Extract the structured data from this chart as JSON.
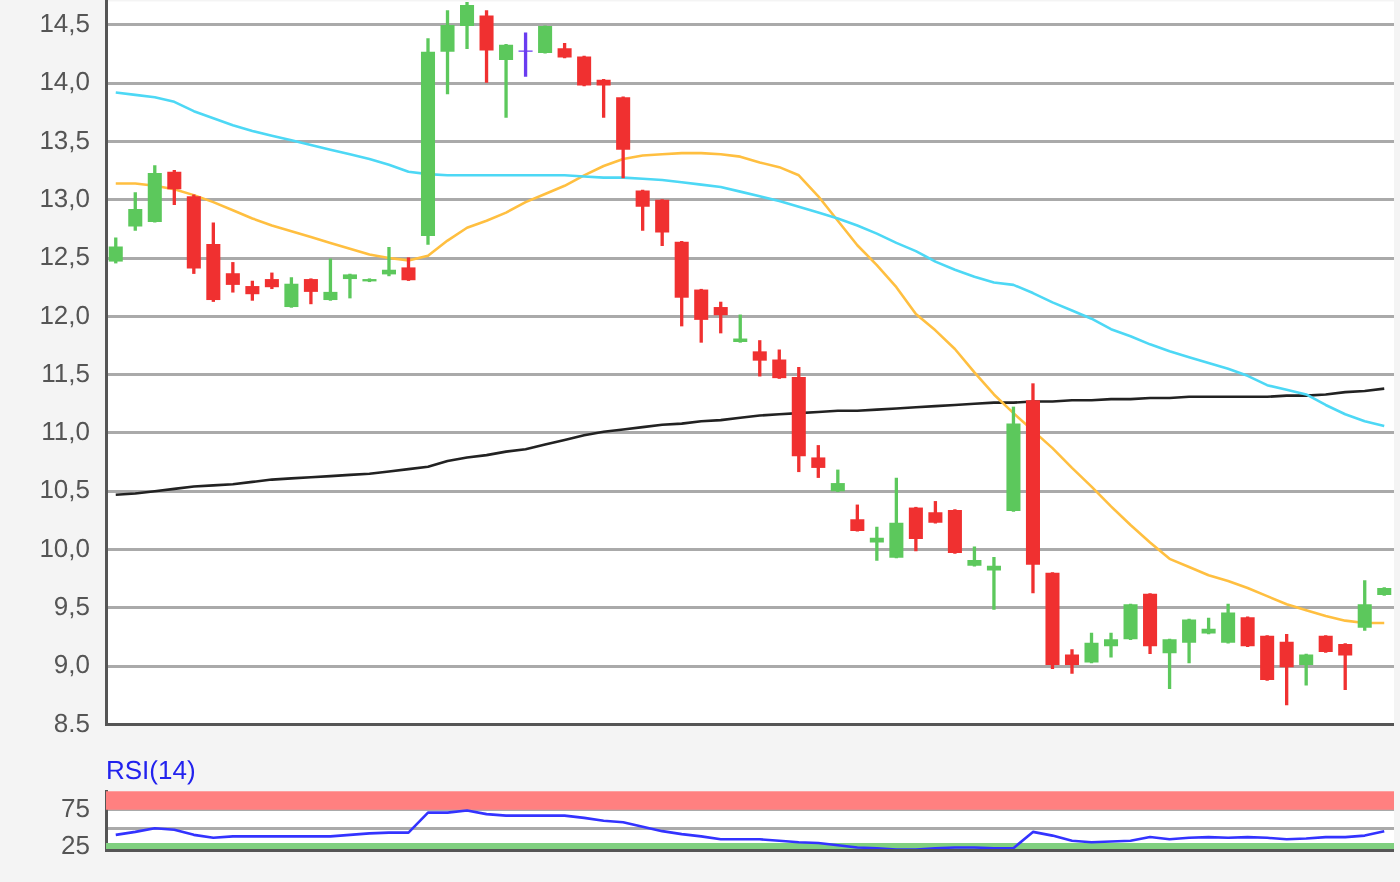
{
  "chart_data": [
    {
      "type": "candlestick",
      "categories": [
        null,
        null,
        null,
        null,
        null,
        null,
        null,
        null,
        null,
        null,
        null,
        null,
        null,
        null,
        null,
        null,
        null,
        null,
        null,
        null,
        null,
        null,
        null,
        null,
        null,
        null,
        null,
        null,
        null,
        null,
        null,
        null,
        null,
        null,
        null,
        null,
        null,
        null,
        null,
        null,
        null,
        null,
        null,
        null,
        null,
        null,
        null,
        null,
        null,
        null,
        null,
        null,
        null,
        null,
        null,
        null,
        null,
        null,
        null,
        null,
        null,
        null,
        null,
        null,
        null,
        null
      ],
      "ohlc": [
        [
          12.47,
          12.67,
          12.46,
          12.6
        ],
        [
          12.77,
          13.06,
          12.74,
          12.92
        ],
        [
          12.81,
          13.29,
          12.81,
          13.23
        ],
        [
          13.24,
          13.25,
          12.96,
          13.09
        ],
        [
          13.03,
          13.04,
          12.37,
          12.41
        ],
        [
          12.62,
          12.8,
          12.13,
          12.14
        ],
        [
          12.37,
          12.46,
          12.21,
          12.27
        ],
        [
          12.26,
          12.3,
          12.14,
          12.19
        ],
        [
          12.32,
          12.37,
          12.24,
          12.25
        ],
        [
          12.08,
          12.33,
          12.08,
          12.28
        ],
        [
          12.32,
          12.32,
          12.11,
          12.21
        ],
        [
          12.14,
          12.49,
          12.14,
          12.21
        ],
        [
          12.32,
          12.36,
          12.16,
          12.36
        ],
        [
          12.3,
          12.32,
          12.3,
          12.32
        ],
        [
          12.36,
          12.59,
          12.35,
          12.4
        ],
        [
          12.42,
          12.5,
          12.31,
          12.31
        ],
        [
          12.69,
          14.38,
          12.62,
          14.27
        ],
        [
          14.27,
          14.62,
          13.91,
          14.5
        ],
        [
          14.49,
          14.69,
          14.3,
          14.67
        ],
        [
          14.58,
          14.62,
          14.01,
          14.28
        ],
        [
          14.2,
          14.33,
          13.71,
          14.33
        ],
        [
          14.28,
          14.43,
          14.06,
          14.27
        ],
        [
          14.26,
          14.49,
          14.26,
          14.49
        ],
        [
          14.3,
          14.34,
          14.22,
          14.22
        ],
        [
          14.23,
          14.23,
          13.98,
          13.98
        ],
        [
          14.03,
          14.03,
          13.71,
          13.98
        ],
        [
          13.88,
          13.88,
          13.19,
          13.43
        ],
        [
          13.08,
          13.08,
          12.74,
          12.94
        ],
        [
          13.0,
          13.0,
          12.61,
          12.72
        ],
        [
          12.64,
          12.64,
          11.92,
          12.16
        ],
        [
          12.23,
          12.23,
          11.78,
          11.97
        ],
        [
          12.08,
          12.12,
          11.86,
          12.01
        ],
        [
          11.78,
          12.01,
          11.78,
          11.81
        ],
        [
          11.7,
          11.79,
          11.49,
          11.62
        ],
        [
          11.63,
          11.71,
          11.47,
          11.47
        ],
        [
          11.48,
          11.56,
          10.67,
          10.8
        ],
        [
          10.79,
          10.89,
          10.62,
          10.7
        ],
        [
          10.5,
          10.68,
          10.5,
          10.57
        ],
        [
          10.26,
          10.38,
          10.16,
          10.16
        ],
        [
          10.06,
          10.19,
          9.91,
          10.1
        ],
        [
          9.93,
          10.61,
          9.93,
          10.23
        ],
        [
          10.36,
          10.36,
          9.99,
          10.09
        ],
        [
          10.32,
          10.41,
          10.23,
          10.23
        ],
        [
          10.34,
          10.34,
          9.97,
          9.97
        ],
        [
          9.86,
          10.02,
          9.86,
          9.91
        ],
        [
          9.82,
          9.93,
          9.49,
          9.86
        ],
        [
          10.33,
          11.22,
          10.33,
          11.08
        ],
        [
          11.28,
          11.42,
          9.63,
          9.87
        ],
        [
          9.8,
          9.8,
          8.98,
          9.01
        ],
        [
          9.1,
          9.14,
          8.94,
          9.01
        ],
        [
          9.03,
          9.28,
          9.03,
          9.2
        ],
        [
          9.17,
          9.28,
          9.08,
          9.23
        ],
        [
          9.23,
          9.53,
          9.23,
          9.53
        ],
        [
          9.62,
          9.62,
          9.11,
          9.17
        ],
        [
          9.11,
          9.23,
          8.81,
          9.23
        ],
        [
          9.2,
          9.4,
          9.03,
          9.4
        ],
        [
          9.28,
          9.41,
          9.28,
          9.32
        ],
        [
          9.2,
          9.53,
          9.2,
          9.46
        ],
        [
          9.42,
          9.42,
          9.17,
          9.17
        ],
        [
          9.26,
          9.26,
          8.88,
          8.88
        ],
        [
          9.21,
          9.27,
          8.67,
          8.99
        ],
        [
          9.01,
          9.1,
          8.84,
          9.1
        ],
        [
          9.26,
          9.26,
          9.12,
          9.12
        ],
        [
          9.19,
          9.19,
          8.8,
          9.09
        ],
        [
          9.33,
          9.73,
          9.31,
          9.53
        ],
        [
          9.61,
          9.67,
          9.61,
          9.67
        ]
      ],
      "colors": [
        "#5cc85c",
        "#5cc85c",
        "#5cc85c",
        "#f03030",
        "#f03030",
        "#f03030",
        "#f03030",
        "#f03030",
        "#f03030",
        "#5cc85c",
        "#f03030",
        "#5cc85c",
        "#5cc85c",
        "#5cc85c",
        "#5cc85c",
        "#f03030",
        "#5cc85c",
        "#5cc85c",
        "#5cc85c",
        "#f03030",
        "#5cc85c",
        "#6a3cf0",
        "#5cc85c",
        "#f03030",
        "#f03030",
        "#f03030",
        "#f03030",
        "#f03030",
        "#f03030",
        "#f03030",
        "#f03030",
        "#f03030",
        "#5cc85c",
        "#f03030",
        "#f03030",
        "#f03030",
        "#f03030",
        "#5cc85c",
        "#f03030",
        "#5cc85c",
        "#5cc85c",
        "#f03030",
        "#f03030",
        "#f03030",
        "#5cc85c",
        "#5cc85c",
        "#5cc85c",
        "#f03030",
        "#f03030",
        "#f03030",
        "#5cc85c",
        "#5cc85c",
        "#5cc85c",
        "#f03030",
        "#5cc85c",
        "#5cc85c",
        "#5cc85c",
        "#5cc85c",
        "#f03030",
        "#f03030",
        "#f03030",
        "#5cc85c",
        "#f03030",
        "#f03030",
        "#5cc85c",
        "#5cc85c"
      ],
      "series": [
        {
          "type": "line",
          "color": "#4dd8f5",
          "values": [
            13.92,
            13.9,
            13.88,
            13.84,
            13.76,
            13.7,
            13.64,
            13.59,
            13.55,
            13.51,
            13.47,
            13.43,
            13.39,
            13.35,
            13.3,
            13.24,
            13.22,
            13.21,
            13.21,
            13.21,
            13.21,
            13.21,
            13.21,
            13.21,
            13.2,
            13.19,
            13.19,
            13.18,
            13.17,
            13.15,
            13.13,
            13.11,
            13.07,
            13.03,
            12.99,
            12.94,
            12.89,
            12.84,
            12.78,
            12.71,
            12.63,
            12.56,
            12.47,
            12.4,
            12.34,
            12.29,
            12.27,
            12.2,
            12.12,
            12.05,
            11.98,
            11.89,
            11.83,
            11.76,
            11.7,
            11.65,
            11.6,
            11.55,
            11.49,
            11.41,
            11.37,
            11.33,
            11.24,
            11.16,
            11.1,
            11.06
          ]
        },
        {
          "type": "line",
          "color": "#ffbf40",
          "values": [
            13.14,
            13.14,
            13.12,
            13.09,
            13.04,
            12.98,
            12.91,
            12.84,
            12.78,
            12.73,
            12.68,
            12.63,
            12.58,
            12.53,
            12.5,
            12.48,
            12.52,
            12.65,
            12.76,
            12.82,
            12.89,
            12.98,
            13.05,
            13.12,
            13.21,
            13.29,
            13.35,
            13.38,
            13.39,
            13.4,
            13.4,
            13.39,
            13.37,
            13.32,
            13.28,
            13.21,
            13.03,
            12.82,
            12.61,
            12.44,
            12.25,
            12.02,
            11.88,
            11.72,
            11.52,
            11.33,
            11.17,
            11.02,
            10.87,
            10.7,
            10.54,
            10.37,
            10.21,
            10.06,
            9.92,
            9.85,
            9.78,
            9.73,
            9.67,
            9.6,
            9.53,
            9.48,
            9.43,
            9.39,
            9.37,
            9.37
          ]
        },
        {
          "type": "line",
          "color": "#222222",
          "values": [
            10.47,
            10.48,
            10.5,
            10.52,
            10.54,
            10.55,
            10.56,
            10.58,
            10.6,
            10.61,
            10.62,
            10.63,
            10.64,
            10.65,
            10.67,
            10.69,
            10.71,
            10.76,
            10.79,
            10.81,
            10.84,
            10.86,
            10.9,
            10.94,
            10.98,
            11.01,
            11.03,
            11.05,
            11.07,
            11.08,
            11.1,
            11.11,
            11.13,
            11.15,
            11.16,
            11.17,
            11.18,
            11.19,
            11.19,
            11.2,
            11.21,
            11.22,
            11.23,
            11.24,
            11.25,
            11.26,
            11.26,
            11.27,
            11.27,
            11.28,
            11.28,
            11.29,
            11.29,
            11.3,
            11.3,
            11.31,
            11.31,
            11.31,
            11.31,
            11.31,
            11.32,
            11.32,
            11.33,
            11.35,
            11.36,
            11.38
          ]
        }
      ],
      "ylim": [
        8.5,
        14.7
      ],
      "yticks": [
        {
          "value": 8.5,
          "label": "8.5"
        },
        {
          "value": 9,
          "label": "9,0"
        },
        {
          "value": 9.5,
          "label": "9,5"
        },
        {
          "value": 10,
          "label": "10,0"
        },
        {
          "value": 10.5,
          "label": "10,5"
        },
        {
          "value": 11,
          "label": "11,0"
        },
        {
          "value": 11.5,
          "label": "11,5"
        },
        {
          "value": 12,
          "label": "12,0"
        },
        {
          "value": 12.5,
          "label": "12,5"
        },
        {
          "value": 13,
          "label": "13,0"
        },
        {
          "value": 13.5,
          "label": "13,5"
        },
        {
          "value": 14,
          "label": "14,0"
        },
        {
          "value": 14.5,
          "label": "14,5"
        }
      ],
      "grid": "y",
      "tick_labels": "y"
    },
    {
      "type": "line",
      "title": "RSI(14)",
      "categories": [
        null,
        null,
        null,
        null,
        null,
        null,
        null,
        null,
        null,
        null,
        null,
        null,
        null,
        null,
        null,
        null,
        null,
        null,
        null,
        null,
        null,
        null,
        null,
        null,
        null,
        null,
        null,
        null,
        null,
        null,
        null,
        null,
        null,
        null,
        null,
        null,
        null,
        null,
        null,
        null,
        null,
        null,
        null,
        null,
        null,
        null,
        null,
        null,
        null,
        null,
        null,
        null,
        null,
        null,
        null,
        null,
        null,
        null,
        null,
        null,
        null,
        null,
        null,
        null,
        null,
        null
      ],
      "series": [
        {
          "color": "#3333ff",
          "values": [
            41,
            45,
            50,
            48,
            41,
            37,
            39,
            39,
            39,
            39,
            39,
            39,
            41,
            43,
            44,
            44,
            71,
            71,
            74,
            69,
            67,
            67,
            67,
            67,
            64,
            60,
            58,
            52,
            46,
            42,
            39,
            35,
            35,
            35,
            33,
            31,
            30,
            27,
            24,
            23,
            21,
            21,
            23,
            24,
            24,
            23,
            23,
            45,
            40,
            33,
            31,
            32,
            33,
            38,
            35,
            37,
            38,
            37,
            38,
            37,
            35,
            36,
            38,
            38,
            40,
            46
          ]
        }
      ],
      "ylim": [
        20,
        100
      ],
      "yticks": [
        25,
        {
          "value": 50,
          "label": null
        },
        75
      ],
      "bands": [
        {
          "axis": "y",
          "from": 75,
          "to": 100,
          "color": "#ff8080"
        },
        {
          "axis": "y",
          "from": 20,
          "to": 30,
          "color": "#80d080"
        }
      ],
      "grid": "y",
      "tick_labels": "y"
    }
  ]
}
